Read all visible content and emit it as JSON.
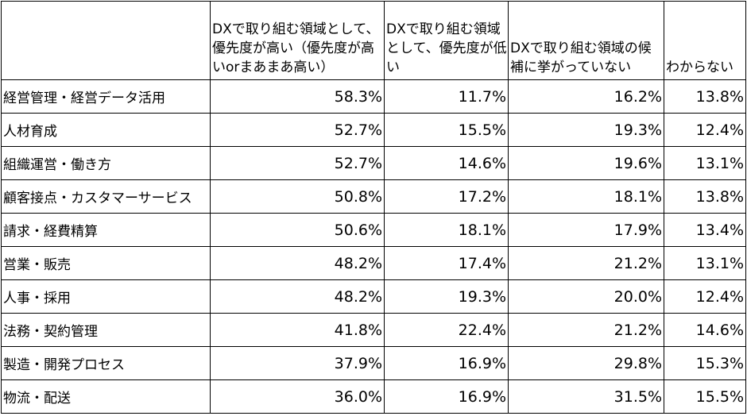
{
  "table": {
    "headers": [
      "",
      "DXで取り組む領域として、優先度が高い（優先度が高いorまあまあ高い）",
      "DXで取り組む領域として、優先度が低い",
      "DXで取り組む領域の候補に挙がっていない",
      "わからない"
    ],
    "rows": [
      {
        "label": "経営管理・経営データ活用",
        "values": [
          "58.3%",
          "11.7%",
          "16.2%",
          "13.8%"
        ]
      },
      {
        "label": "人材育成",
        "values": [
          "52.7%",
          "15.5%",
          "19.3%",
          "12.4%"
        ]
      },
      {
        "label": "組織運営・働き方",
        "values": [
          "52.7%",
          "14.6%",
          "19.6%",
          "13.1%"
        ]
      },
      {
        "label": "顧客接点・カスタマーサービス",
        "values": [
          "50.8%",
          "17.2%",
          "18.1%",
          "13.8%"
        ]
      },
      {
        "label": "請求・経費精算",
        "values": [
          "50.6%",
          "18.1%",
          "17.9%",
          "13.4%"
        ]
      },
      {
        "label": "営業・販売",
        "values": [
          "48.2%",
          "17.4%",
          "21.2%",
          "13.1%"
        ]
      },
      {
        "label": "人事・採用",
        "values": [
          "48.2%",
          "19.3%",
          "20.0%",
          "12.4%"
        ]
      },
      {
        "label": "法務・契約管理",
        "values": [
          "41.8%",
          "22.4%",
          "21.2%",
          "14.6%"
        ]
      },
      {
        "label": "製造・開発プロセス",
        "values": [
          "37.9%",
          "16.9%",
          "29.8%",
          "15.3%"
        ]
      },
      {
        "label": "物流・配送",
        "values": [
          "36.0%",
          "16.9%",
          "31.5%",
          "15.5%"
        ]
      }
    ]
  }
}
